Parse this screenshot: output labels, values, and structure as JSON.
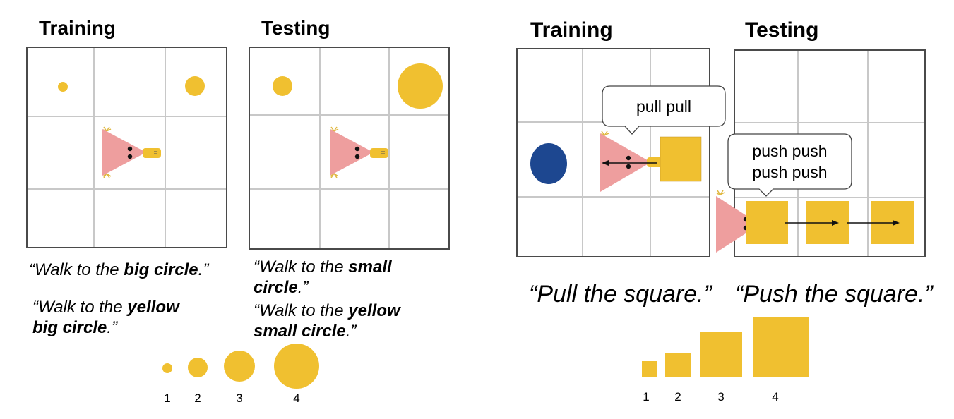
{
  "left_panel": {
    "training_heading": "Training",
    "testing_heading": "Testing",
    "training_caption_1": {
      "pre": "“Walk to the ",
      "bold": "big circle",
      "post": ".”"
    },
    "training_caption_2": {
      "pre": "“Walk to the ",
      "bold": "yellow",
      "line2_bold": "big circle",
      "post": ".”"
    },
    "testing_caption_1": {
      "pre": "“Walk to the ",
      "bold": "small",
      "line2_bold": "circle",
      "post": ".”"
    },
    "testing_caption_2": {
      "pre": "“Walk to the ",
      "bold": "yellow",
      "line2_bold": "small circle",
      "post": ".”"
    },
    "size_labels": [
      "1",
      "2",
      "3",
      "4"
    ]
  },
  "right_panel": {
    "training_heading": "Training",
    "testing_heading": "Testing",
    "pull_bubble": "pull pull",
    "push_bubble_line1": "push push",
    "push_bubble_line2": "push push",
    "pull_caption": "“Pull the square.”",
    "push_caption": "“Push the square.”",
    "size_labels": [
      "1",
      "2",
      "3",
      "4"
    ]
  },
  "colors": {
    "yellow": "#f0c030",
    "blue": "#1d4790",
    "agent_pink": "#ee9e9e",
    "grid_border": "#4a4a4a",
    "grid_line": "#c8c8c8"
  },
  "icons": [
    "agent-triangle-icon",
    "yellow-circle-icon",
    "blue-circle-icon",
    "yellow-square-icon",
    "arrow-icon",
    "speech-bubble-icon"
  ]
}
